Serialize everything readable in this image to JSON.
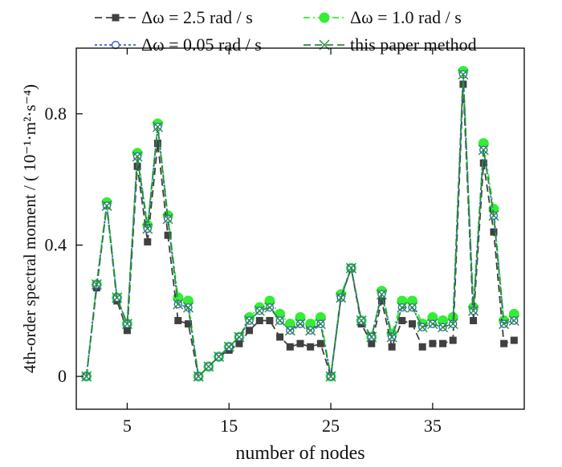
{
  "chart_data": {
    "type": "line",
    "title": "",
    "xlabel": "number of nodes",
    "ylabel": "4th-order spectral moment / ( 10⁻¹·m²·s⁻⁴)",
    "x": [
      1,
      2,
      3,
      4,
      5,
      6,
      7,
      8,
      9,
      10,
      11,
      12,
      13,
      14,
      15,
      16,
      17,
      18,
      19,
      20,
      21,
      22,
      23,
      24,
      25,
      26,
      27,
      28,
      29,
      30,
      31,
      32,
      33,
      34,
      35,
      36,
      37,
      38,
      39,
      40,
      41,
      42,
      43
    ],
    "xlim": [
      0,
      44
    ],
    "ylim": [
      -0.1,
      1.0
    ],
    "xticks": [
      5,
      15,
      25,
      35
    ],
    "yticks": [
      0,
      0.4,
      0.8
    ],
    "ytick_labels": [
      "0",
      "0.4",
      "0.8"
    ],
    "legend_position": "top",
    "series": [
      {
        "name": "Δω = 2.5 rad / s",
        "color": "#404040",
        "marker": "square",
        "dash": "dashed",
        "values": [
          0.0,
          0.27,
          0.52,
          0.23,
          0.14,
          0.64,
          0.41,
          0.71,
          0.43,
          0.17,
          0.16,
          0.0,
          0.03,
          0.06,
          0.08,
          0.1,
          0.14,
          0.17,
          0.17,
          0.12,
          0.09,
          0.1,
          0.09,
          0.1,
          0.0,
          0.24,
          0.33,
          0.16,
          0.1,
          0.23,
          0.09,
          0.17,
          0.16,
          0.09,
          0.1,
          0.1,
          0.11,
          0.89,
          0.17,
          0.65,
          0.44,
          0.1,
          0.11
        ]
      },
      {
        "name": "Δω = 1.0 rad / s",
        "color": "#33ee33",
        "marker": "filled-circle",
        "dash": "dashdot",
        "values": [
          0.0,
          0.28,
          0.53,
          0.24,
          0.16,
          0.68,
          0.46,
          0.77,
          0.49,
          0.24,
          0.23,
          0.0,
          0.03,
          0.06,
          0.09,
          0.12,
          0.18,
          0.21,
          0.23,
          0.19,
          0.16,
          0.18,
          0.16,
          0.18,
          0.0,
          0.25,
          0.33,
          0.17,
          0.12,
          0.26,
          0.13,
          0.23,
          0.23,
          0.16,
          0.18,
          0.17,
          0.18,
          0.93,
          0.21,
          0.71,
          0.51,
          0.17,
          0.19
        ]
      },
      {
        "name": "Δω = 0.05 rad / s",
        "color": "#3366cc",
        "marker": "open-circle",
        "dash": "dotted",
        "values": [
          0.0,
          0.28,
          0.52,
          0.24,
          0.16,
          0.67,
          0.45,
          0.76,
          0.48,
          0.22,
          0.21,
          0.0,
          0.03,
          0.06,
          0.09,
          0.12,
          0.17,
          0.2,
          0.21,
          0.17,
          0.14,
          0.16,
          0.14,
          0.16,
          0.0,
          0.24,
          0.33,
          0.17,
          0.12,
          0.25,
          0.12,
          0.21,
          0.21,
          0.15,
          0.16,
          0.15,
          0.16,
          0.92,
          0.2,
          0.69,
          0.49,
          0.16,
          0.17
        ]
      },
      {
        "name": "this paper method",
        "color": "#2a8c3a",
        "marker": "x",
        "dash": "dashed",
        "values": [
          0.0,
          0.28,
          0.52,
          0.24,
          0.16,
          0.67,
          0.45,
          0.76,
          0.48,
          0.22,
          0.21,
          0.0,
          0.03,
          0.06,
          0.09,
          0.12,
          0.17,
          0.2,
          0.21,
          0.17,
          0.14,
          0.16,
          0.14,
          0.16,
          0.0,
          0.24,
          0.33,
          0.17,
          0.12,
          0.25,
          0.12,
          0.21,
          0.21,
          0.15,
          0.16,
          0.15,
          0.16,
          0.92,
          0.2,
          0.69,
          0.49,
          0.16,
          0.17
        ]
      }
    ]
  }
}
